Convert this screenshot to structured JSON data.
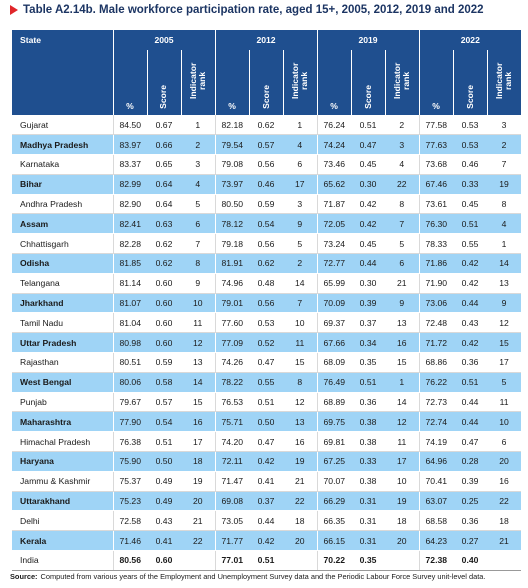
{
  "title": "Table A2.14b. Male workforce participation rate, aged 15+, 2005, 2012, 2019 and 2022",
  "table": {
    "header": {
      "state": "State",
      "years": [
        "2005",
        "2012",
        "2019",
        "2022"
      ],
      "subheaders": [
        "%",
        "Score",
        "Indicator rank"
      ]
    },
    "rows": [
      [
        "Gujarat",
        "84.50",
        "0.67",
        "1",
        "82.18",
        "0.62",
        "1",
        "76.24",
        "0.51",
        "2",
        "77.58",
        "0.53",
        "3"
      ],
      [
        "Madhya Pradesh",
        "83.97",
        "0.66",
        "2",
        "79.54",
        "0.57",
        "4",
        "74.24",
        "0.47",
        "3",
        "77.63",
        "0.53",
        "2"
      ],
      [
        "Karnataka",
        "83.37",
        "0.65",
        "3",
        "79.08",
        "0.56",
        "6",
        "73.46",
        "0.45",
        "4",
        "73.68",
        "0.46",
        "7"
      ],
      [
        "Bihar",
        "82.99",
        "0.64",
        "4",
        "73.97",
        "0.46",
        "17",
        "65.62",
        "0.30",
        "22",
        "67.46",
        "0.33",
        "19"
      ],
      [
        "Andhra Pradesh",
        "82.90",
        "0.64",
        "5",
        "80.50",
        "0.59",
        "3",
        "71.87",
        "0.42",
        "8",
        "73.61",
        "0.45",
        "8"
      ],
      [
        "Assam",
        "82.41",
        "0.63",
        "6",
        "78.12",
        "0.54",
        "9",
        "72.05",
        "0.42",
        "7",
        "76.30",
        "0.51",
        "4"
      ],
      [
        "Chhattisgarh",
        "82.28",
        "0.62",
        "7",
        "79.18",
        "0.56",
        "5",
        "73.24",
        "0.45",
        "5",
        "78.33",
        "0.55",
        "1"
      ],
      [
        "Odisha",
        "81.85",
        "0.62",
        "8",
        "81.91",
        "0.62",
        "2",
        "72.77",
        "0.44",
        "6",
        "71.86",
        "0.42",
        "14"
      ],
      [
        "Telangana",
        "81.14",
        "0.60",
        "9",
        "74.96",
        "0.48",
        "14",
        "65.99",
        "0.30",
        "21",
        "71.90",
        "0.42",
        "13"
      ],
      [
        "Jharkhand",
        "81.07",
        "0.60",
        "10",
        "79.01",
        "0.56",
        "7",
        "70.09",
        "0.39",
        "9",
        "73.06",
        "0.44",
        "9"
      ],
      [
        "Tamil Nadu",
        "81.04",
        "0.60",
        "11",
        "77.60",
        "0.53",
        "10",
        "69.37",
        "0.37",
        "13",
        "72.48",
        "0.43",
        "12"
      ],
      [
        "Uttar Pradesh",
        "80.98",
        "0.60",
        "12",
        "77.09",
        "0.52",
        "11",
        "67.66",
        "0.34",
        "16",
        "71.72",
        "0.42",
        "15"
      ],
      [
        "Rajasthan",
        "80.51",
        "0.59",
        "13",
        "74.26",
        "0.47",
        "15",
        "68.09",
        "0.35",
        "15",
        "68.86",
        "0.36",
        "17"
      ],
      [
        "West Bengal",
        "80.06",
        "0.58",
        "14",
        "78.22",
        "0.55",
        "8",
        "76.49",
        "0.51",
        "1",
        "76.22",
        "0.51",
        "5"
      ],
      [
        "Punjab",
        "79.67",
        "0.57",
        "15",
        "76.53",
        "0.51",
        "12",
        "68.89",
        "0.36",
        "14",
        "72.73",
        "0.44",
        "11"
      ],
      [
        "Maharashtra",
        "77.90",
        "0.54",
        "16",
        "75.71",
        "0.50",
        "13",
        "69.75",
        "0.38",
        "12",
        "72.74",
        "0.44",
        "10"
      ],
      [
        "Himachal Pradesh",
        "76.38",
        "0.51",
        "17",
        "74.20",
        "0.47",
        "16",
        "69.81",
        "0.38",
        "11",
        "74.19",
        "0.47",
        "6"
      ],
      [
        "Haryana",
        "75.90",
        "0.50",
        "18",
        "72.11",
        "0.42",
        "19",
        "67.25",
        "0.33",
        "17",
        "64.96",
        "0.28",
        "20"
      ],
      [
        "Jammu & Kashmir",
        "75.37",
        "0.49",
        "19",
        "71.47",
        "0.41",
        "21",
        "70.07",
        "0.38",
        "10",
        "70.41",
        "0.39",
        "16"
      ],
      [
        "Uttarakhand",
        "75.23",
        "0.49",
        "20",
        "69.08",
        "0.37",
        "22",
        "66.29",
        "0.31",
        "19",
        "63.07",
        "0.25",
        "22"
      ],
      [
        "Delhi",
        "72.58",
        "0.43",
        "21",
        "73.05",
        "0.44",
        "18",
        "66.35",
        "0.31",
        "18",
        "68.58",
        "0.36",
        "18"
      ],
      [
        "Kerala",
        "71.46",
        "0.41",
        "22",
        "71.77",
        "0.42",
        "20",
        "66.15",
        "0.31",
        "20",
        "64.23",
        "0.27",
        "21"
      ]
    ],
    "total": [
      "India",
      "80.56",
      "0.60",
      "77.01",
      "0.51",
      "70.22",
      "0.35",
      "72.38",
      "0.40"
    ]
  },
  "source": {
    "label": "Source:",
    "text": "Computed from various years of the Employment and Unemployment Survey data and the Periodic Labour Force Survey unit-level data."
  }
}
